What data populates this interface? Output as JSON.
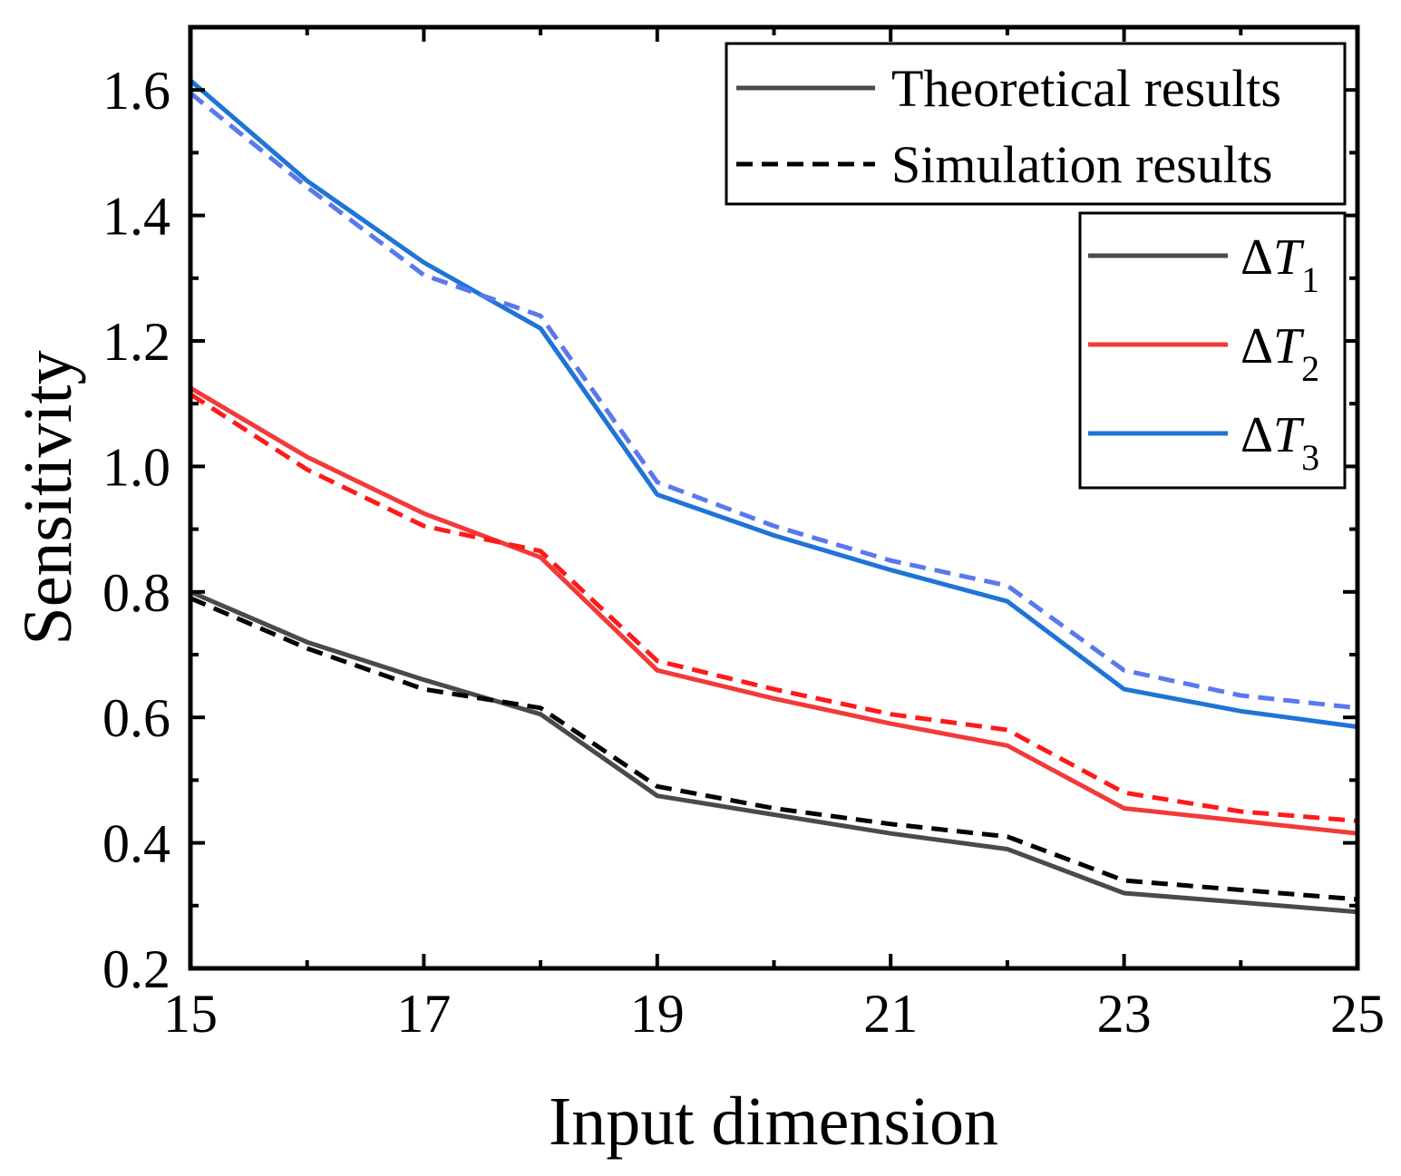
{
  "chart_data": {
    "type": "line",
    "xlabel": "Input dimension",
    "ylabel": "Sensitivity",
    "xlim": [
      15,
      25
    ],
    "ylim": [
      0.2,
      1.7
    ],
    "x_ticks": [
      15,
      17,
      19,
      21,
      23,
      25
    ],
    "x_tick_labels": [
      "15",
      "17",
      "19",
      "21",
      "23",
      "25"
    ],
    "y_ticks": [
      0.2,
      0.4,
      0.6,
      0.8,
      1.0,
      1.2,
      1.4,
      1.6
    ],
    "y_tick_labels": [
      "0.2",
      "0.4",
      "0.6",
      "0.8",
      "1.0",
      "1.2",
      "1.4",
      "1.6"
    ],
    "grid": false,
    "x": [
      15,
      16,
      17,
      18,
      19,
      20,
      21,
      22,
      23,
      24,
      25
    ],
    "series": [
      {
        "name": "ΔT1",
        "subscript": "1",
        "kind": "Theoretical results",
        "color": "#4a4a4a",
        "dashed": false,
        "values": [
          0.8,
          0.72,
          0.66,
          0.605,
          0.475,
          0.445,
          0.415,
          0.39,
          0.32,
          0.305,
          0.29
        ]
      },
      {
        "name": "ΔT1",
        "subscript": "1",
        "kind": "Simulation results",
        "color": "#000000",
        "dashed": true,
        "values": [
          0.79,
          0.71,
          0.645,
          0.615,
          0.49,
          0.455,
          0.43,
          0.41,
          0.34,
          0.325,
          0.31
        ]
      },
      {
        "name": "ΔT2",
        "subscript": "2",
        "kind": "Theoretical results",
        "color": "#f23a3a",
        "dashed": false,
        "values": [
          1.125,
          1.015,
          0.925,
          0.855,
          0.675,
          0.63,
          0.59,
          0.555,
          0.455,
          0.435,
          0.415
        ]
      },
      {
        "name": "ΔT2",
        "subscript": "2",
        "kind": "Simulation results",
        "color": "#ff1a1a",
        "dashed": true,
        "values": [
          1.115,
          0.995,
          0.905,
          0.865,
          0.69,
          0.645,
          0.605,
          0.58,
          0.48,
          0.45,
          0.435
        ]
      },
      {
        "name": "ΔT3",
        "subscript": "3",
        "kind": "Theoretical results",
        "color": "#1f74d6",
        "dashed": false,
        "values": [
          1.615,
          1.455,
          1.325,
          1.22,
          0.955,
          0.89,
          0.835,
          0.785,
          0.645,
          0.61,
          0.585
        ]
      },
      {
        "name": "ΔT3",
        "subscript": "3",
        "kind": "Simulation results",
        "color": "#5a78ee",
        "dashed": true,
        "values": [
          1.595,
          1.445,
          1.305,
          1.24,
          0.975,
          0.905,
          0.85,
          0.81,
          0.675,
          0.635,
          0.615
        ]
      }
    ],
    "legend_style": {
      "placement": "top-right",
      "entries": [
        {
          "label": "Theoretical results",
          "color": "#4a4a4a",
          "dashed": false
        },
        {
          "label": "Simulation results",
          "color": "#000000",
          "dashed": true
        }
      ]
    },
    "legend_series": {
      "placement": "right",
      "entries": [
        {
          "symbol": "ΔT",
          "subscript": "1",
          "color": "#4a4a4a"
        },
        {
          "symbol": "ΔT",
          "subscript": "2",
          "color": "#f23a3a"
        },
        {
          "symbol": "ΔT",
          "subscript": "3",
          "color": "#1f74d6"
        }
      ]
    }
  }
}
